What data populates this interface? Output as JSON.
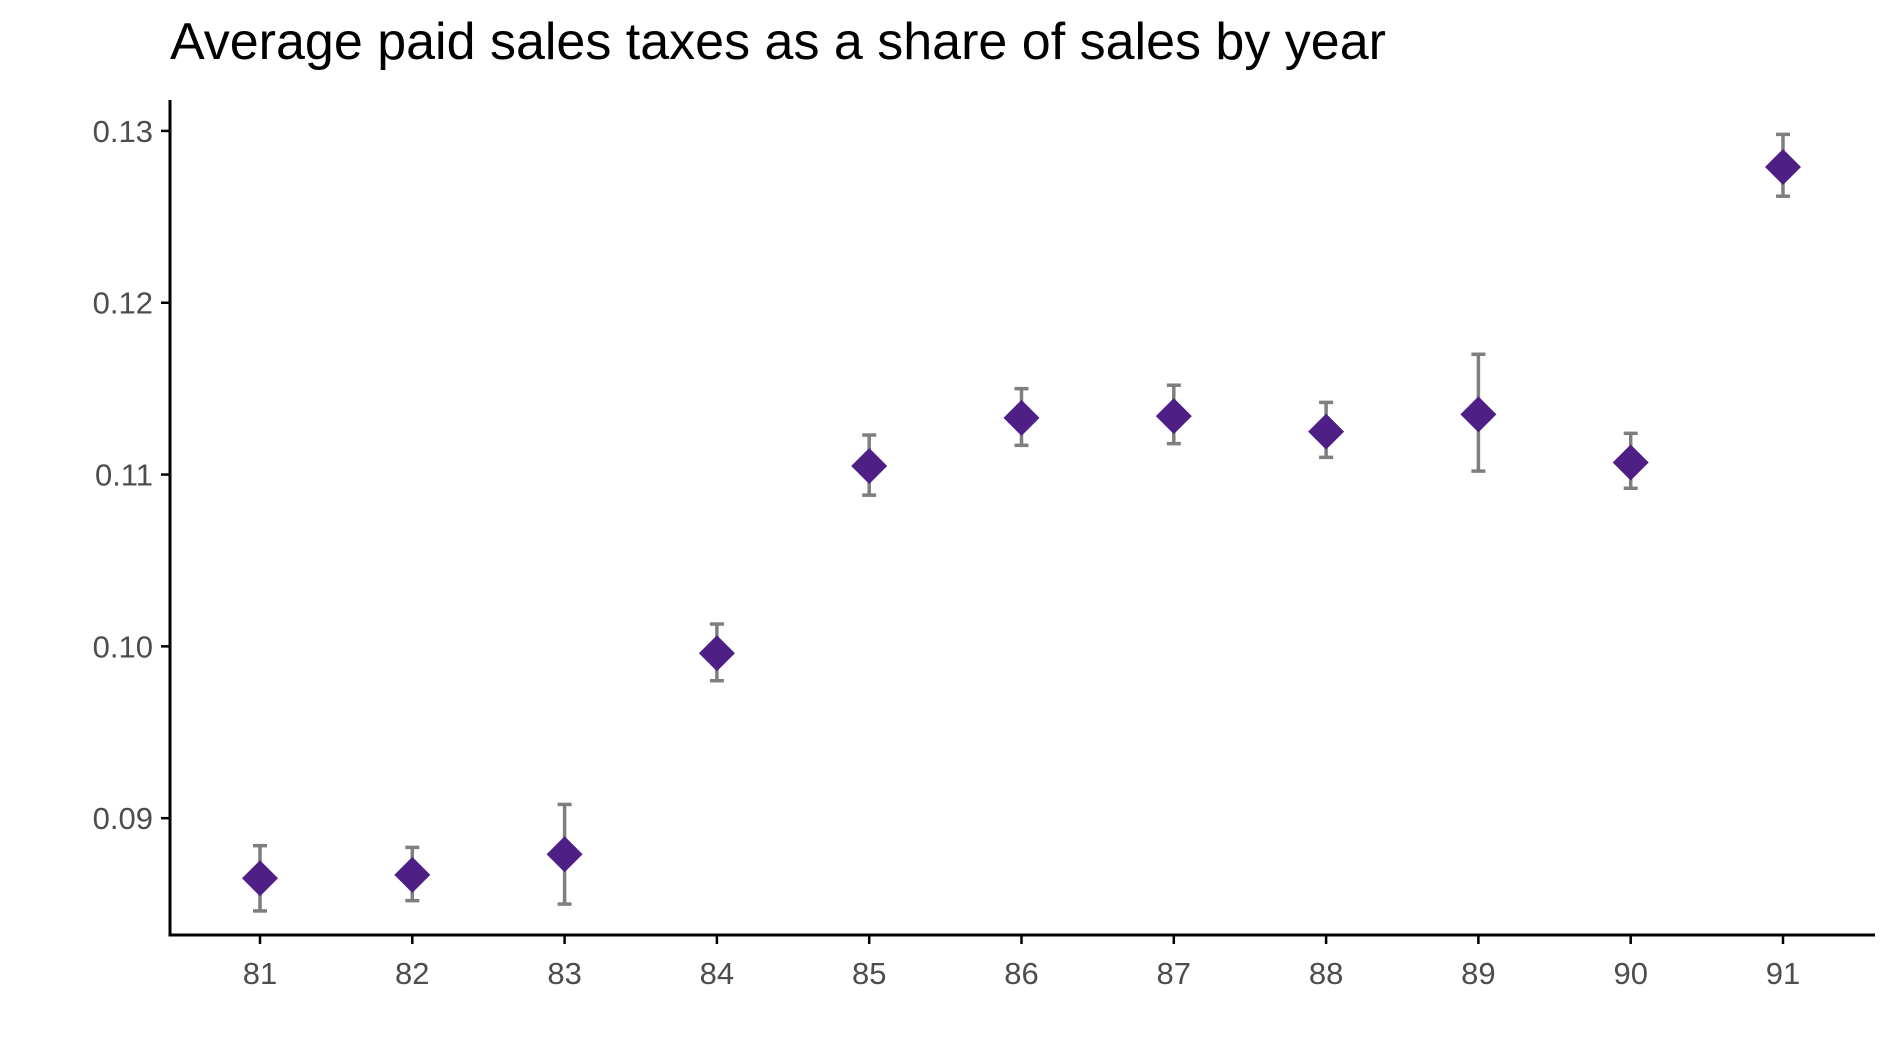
{
  "chart_data": {
    "type": "scatter",
    "title": "Average paid sales taxes as a share of sales by year",
    "xlabel": "",
    "ylabel": "",
    "x": [
      "81",
      "82",
      "83",
      "84",
      "85",
      "86",
      "87",
      "88",
      "89",
      "90",
      "91"
    ],
    "series": [
      {
        "values": [
          0.0865,
          0.0867,
          0.0879,
          0.0996,
          0.1105,
          0.1133,
          0.1134,
          0.1125,
          0.1135,
          0.1107,
          0.1279
        ],
        "lower": [
          0.0846,
          0.0852,
          0.085,
          0.098,
          0.1088,
          0.1117,
          0.1118,
          0.111,
          0.1102,
          0.1092,
          0.1262
        ],
        "upper": [
          0.0884,
          0.0883,
          0.0908,
          0.1013,
          0.1123,
          0.115,
          0.1152,
          0.1142,
          0.117,
          0.1124,
          0.1298
        ]
      }
    ],
    "yticks": [
      "0.09",
      "0.10",
      "0.11",
      "0.12",
      "0.13"
    ],
    "ylim": [
      0.0832,
      0.1318
    ],
    "grid": false,
    "marker": "diamond",
    "colors": {
      "point": "#4e1f84",
      "errorbar": "#7f7f7f",
      "axis": "#000000",
      "tick_label": "#4d4d4d"
    }
  }
}
